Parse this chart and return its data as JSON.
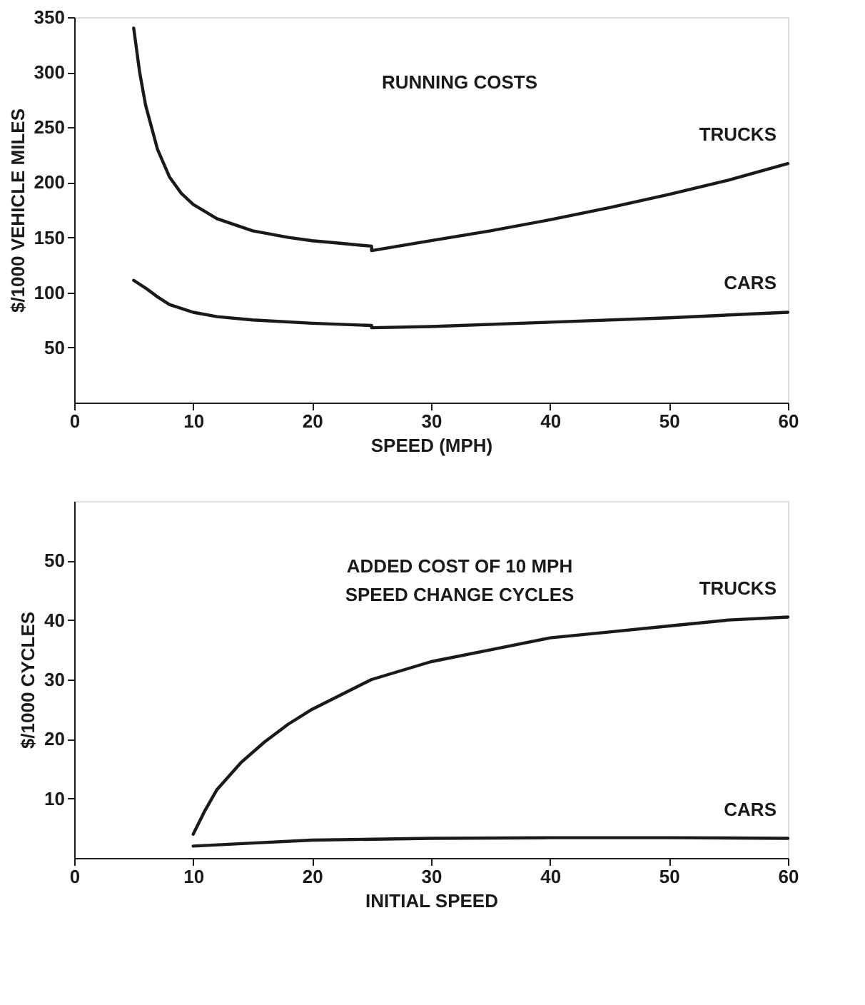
{
  "chart_data": [
    {
      "type": "line",
      "title": "RUNNING COSTS",
      "xlabel": "SPEED (MPH)",
      "ylabel": "$/1000 VEHICLE MILES",
      "xlim": [
        0,
        60
      ],
      "ylim": [
        0,
        350
      ],
      "xticks": [
        0,
        10,
        20,
        30,
        40,
        50,
        60
      ],
      "yticks": [
        50,
        100,
        150,
        200,
        250,
        300,
        350
      ],
      "grid": false,
      "legend": false,
      "series": [
        {
          "name": "TRUCKS",
          "color": "#1a1a1a",
          "x": [
            5,
            5.5,
            6,
            7,
            8,
            9,
            10,
            12,
            15,
            18,
            20,
            22,
            25,
            25,
            30,
            35,
            40,
            45,
            50,
            55,
            60
          ],
          "values": [
            340,
            300,
            270,
            230,
            205,
            190,
            180,
            167,
            156,
            150,
            147,
            145,
            142,
            138,
            147,
            156,
            166,
            177,
            189,
            202,
            217
          ]
        },
        {
          "name": "CARS",
          "color": "#1a1a1a",
          "x": [
            5,
            6,
            7,
            8,
            10,
            12,
            15,
            20,
            25,
            25,
            30,
            40,
            50,
            60
          ],
          "values": [
            111,
            104,
            96,
            89,
            82,
            78,
            75,
            72,
            70,
            68,
            69,
            73,
            77,
            82
          ]
        }
      ]
    },
    {
      "type": "line",
      "title": "ADDED COST OF 10 MPH\nSPEED CHANGE CYCLES",
      "xlabel": "INITIAL SPEED",
      "ylabel": "$/1000 CYCLES",
      "xlim": [
        0,
        60
      ],
      "ylim": [
        0,
        60
      ],
      "xticks": [
        0,
        10,
        20,
        30,
        40,
        50,
        60
      ],
      "yticks": [
        10,
        20,
        30,
        40,
        50
      ],
      "grid": false,
      "legend": false,
      "series": [
        {
          "name": "TRUCKS",
          "color": "#1a1a1a",
          "x": [
            10,
            11,
            12,
            14,
            16,
            18,
            20,
            25,
            30,
            35,
            40,
            45,
            50,
            55,
            60
          ],
          "values": [
            4,
            8,
            11.5,
            16,
            19.5,
            22.5,
            25,
            30,
            33,
            35,
            37,
            38,
            39,
            40,
            40.5
          ]
        },
        {
          "name": "CARS",
          "color": "#1a1a1a",
          "x": [
            10,
            15,
            20,
            30,
            40,
            50,
            60
          ],
          "values": [
            2,
            2.5,
            3,
            3.3,
            3.4,
            3.4,
            3.3
          ]
        }
      ]
    }
  ]
}
